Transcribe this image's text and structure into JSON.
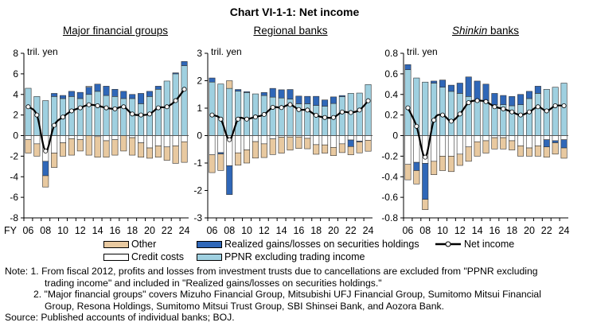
{
  "title": "Chart VI-1-1: Net income",
  "colors": {
    "ppnr": "#9fd0e0",
    "realized": "#2f67b8",
    "credit": "#ffffff",
    "other": "#e8c9a0",
    "net": "#000000"
  },
  "legend": {
    "other": "Other",
    "realized": "Realized gains/losses on securities holdings",
    "net": "Net income",
    "credit": "Credit costs",
    "ppnr": "PPNR excluding trading income"
  },
  "notes": [
    "Note: 1. From fiscal 2012, profits and losses from investment trusts due to cancellations are excluded from \"PPNR excluding",
    "trading income\" and included in \"Realized gains/losses on securities holdings.\"",
    "2. \"Major financial groups\" covers Mizuho Financial Group, Mitsubishi UFJ Financial Group, Sumitomo Mitsui Financial",
    "Group, Resona Holdings, Sumitomo Mitsui Trust Group, SBI Shinsei Bank, and Aozora Bank.",
    "Source: Published accounts of individual banks; BOJ."
  ],
  "chart_data": [
    {
      "type": "bar",
      "title": "Major financial groups",
      "ylabel": "tril. yen",
      "xprefix": "FY",
      "ylim": [
        -8,
        8
      ],
      "yticks": [
        "8",
        "6",
        "4",
        "2",
        "0",
        "-2",
        "-4",
        "-6",
        "-8"
      ],
      "categories": [
        "06",
        "07",
        "08",
        "09",
        "10",
        "11",
        "12",
        "13",
        "14",
        "15",
        "16",
        "17",
        "18",
        "19",
        "20",
        "21",
        "22",
        "23",
        "24"
      ],
      "xticklabels": [
        "06",
        "08",
        "10",
        "12",
        "14",
        "16",
        "18",
        "20",
        "22",
        "24"
      ],
      "series": [
        {
          "name": "PPNR excluding trading income",
          "values": [
            4.6,
            3.8,
            3.4,
            3.8,
            3.6,
            3.8,
            3.6,
            4.0,
            4.3,
            3.9,
            3.8,
            3.6,
            3.6,
            3.1,
            3.8,
            4.5,
            5.3,
            6.0,
            6.8
          ]
        },
        {
          "name": "Realized gains/losses on securities holdings",
          "values": [
            0,
            0,
            -1.4,
            0.3,
            0.3,
            0.5,
            0.6,
            0.7,
            0.7,
            0.9,
            0.7,
            0.7,
            0.4,
            1.0,
            0.5,
            0.3,
            0,
            0.1,
            0.4
          ]
        },
        {
          "name": "Credit costs",
          "values": [
            -0.4,
            -0.8,
            -2.5,
            -1.7,
            -0.7,
            -0.3,
            -0.4,
            0.1,
            -0.1,
            -0.5,
            -0.4,
            0,
            -0.2,
            -0.7,
            -1.2,
            -1.0,
            -1.1,
            -1.0,
            -0.6
          ]
        },
        {
          "name": "Other",
          "values": [
            -1.3,
            -1.2,
            -1.1,
            -1.4,
            -1.3,
            -1.6,
            -1.1,
            -1.9,
            -2.0,
            -1.6,
            -1.5,
            -1.5,
            -1.7,
            -1.4,
            -1.0,
            -1.1,
            -1.3,
            -1.7,
            -2.0
          ]
        },
        {
          "name": "Net income",
          "values": [
            2.8,
            2.0,
            -1.5,
            1.0,
            1.8,
            2.4,
            2.7,
            3.0,
            2.9,
            2.7,
            2.6,
            2.8,
            2.1,
            2.0,
            2.1,
            2.7,
            2.8,
            3.4,
            4.5
          ]
        }
      ]
    },
    {
      "type": "bar",
      "title": "Regional banks",
      "ylabel": "tril. yen",
      "ylim": [
        -3,
        3
      ],
      "yticks": [
        "3",
        "2",
        "1",
        "0",
        "-1",
        "-2",
        "-3"
      ],
      "categories": [
        "06",
        "07",
        "08",
        "09",
        "10",
        "11",
        "12",
        "13",
        "14",
        "15",
        "16",
        "17",
        "18",
        "19",
        "20",
        "21",
        "22",
        "23",
        "24"
      ],
      "xticklabels": [
        "06",
        "08",
        "10",
        "12",
        "14",
        "16",
        "18",
        "20",
        "22",
        "24"
      ],
      "series": [
        {
          "name": "PPNR excluding trading income",
          "values": [
            1.95,
            1.88,
            1.72,
            1.62,
            1.57,
            1.52,
            1.46,
            1.4,
            1.37,
            1.33,
            1.16,
            1.16,
            1.1,
            1.07,
            1.17,
            1.42,
            1.54,
            1.55,
            1.86
          ]
        },
        {
          "name": "Realized gains/losses on securities holdings",
          "values": [
            0.15,
            -0.05,
            -1.05,
            0.06,
            0.03,
            0,
            0.11,
            0.32,
            0.3,
            0.35,
            0.28,
            0.27,
            0.33,
            0.23,
            0.24,
            0.04,
            -0.24,
            -0.03,
            0
          ]
        },
        {
          "name": "Credit costs",
          "values": [
            -0.7,
            -0.62,
            -1.1,
            -0.63,
            -0.52,
            -0.22,
            -0.3,
            -0.12,
            -0.06,
            -0.05,
            -0.05,
            -0.1,
            -0.33,
            -0.34,
            -0.43,
            -0.3,
            -0.16,
            -0.2,
            -0.17
          ]
        },
        {
          "name": "Other",
          "values": [
            -0.65,
            -0.6,
            0.28,
            -0.45,
            -0.48,
            -0.6,
            -0.5,
            -0.57,
            -0.58,
            -0.48,
            -0.42,
            -0.38,
            -0.35,
            -0.3,
            -0.3,
            -0.32,
            -0.3,
            -0.4,
            -0.4
          ]
        },
        {
          "name": "Net income",
          "values": [
            0.75,
            0.6,
            -0.15,
            0.6,
            0.6,
            0.68,
            0.77,
            1.03,
            1.02,
            1.13,
            0.95,
            0.93,
            0.74,
            0.66,
            0.66,
            0.86,
            0.84,
            0.93,
            1.27
          ]
        }
      ]
    },
    {
      "type": "bar",
      "title": "Shinkin banks",
      "ylabel": "tril. yen",
      "ylim": [
        -0.8,
        0.8
      ],
      "yticks": [
        "0.8",
        "0.6",
        "0.4",
        "0.2",
        "0",
        "-0.2",
        "-0.4",
        "-0.6",
        "-0.8"
      ],
      "categories": [
        "06",
        "07",
        "08",
        "09",
        "10",
        "11",
        "12",
        "13",
        "14",
        "15",
        "16",
        "17",
        "18",
        "19",
        "20",
        "21",
        "22",
        "23",
        "24"
      ],
      "xticklabels": [
        "06",
        "08",
        "10",
        "12",
        "14",
        "16",
        "18",
        "20",
        "22",
        "24"
      ],
      "series": [
        {
          "name": "PPNR excluding trading income",
          "values": [
            0.64,
            0.56,
            0.52,
            0.51,
            0.47,
            0.43,
            0.41,
            0.38,
            0.34,
            0.34,
            0.3,
            0.3,
            0.29,
            0.3,
            0.36,
            0.41,
            0.45,
            0.47,
            0.51
          ]
        },
        {
          "name": "Realized gains/losses on securities holdings",
          "values": [
            0.05,
            -0.08,
            -0.35,
            0.02,
            0.07,
            0.06,
            0.1,
            0.19,
            0.19,
            0.16,
            0.11,
            0.09,
            0.09,
            0.1,
            0.07,
            0.07,
            -0.07,
            -0.02,
            -0.08
          ]
        },
        {
          "name": "Credit costs",
          "values": [
            -0.28,
            -0.26,
            -0.27,
            -0.25,
            -0.2,
            -0.2,
            -0.18,
            -0.11,
            -0.06,
            -0.05,
            -0.02,
            -0.02,
            -0.05,
            -0.1,
            -0.12,
            -0.1,
            -0.04,
            -0.05,
            -0.04
          ]
        },
        {
          "name": "Other",
          "values": [
            -0.15,
            -0.13,
            -0.1,
            -0.13,
            -0.14,
            -0.15,
            -0.11,
            -0.14,
            -0.14,
            -0.12,
            -0.11,
            -0.11,
            -0.09,
            -0.1,
            -0.08,
            -0.1,
            -0.1,
            -0.11,
            -0.1
          ]
        },
        {
          "name": "Net income",
          "values": [
            0.27,
            0.09,
            -0.21,
            0.15,
            0.2,
            0.14,
            0.21,
            0.32,
            0.34,
            0.33,
            0.28,
            0.26,
            0.23,
            0.2,
            0.23,
            0.28,
            0.24,
            0.29,
            0.29
          ]
        }
      ]
    }
  ]
}
